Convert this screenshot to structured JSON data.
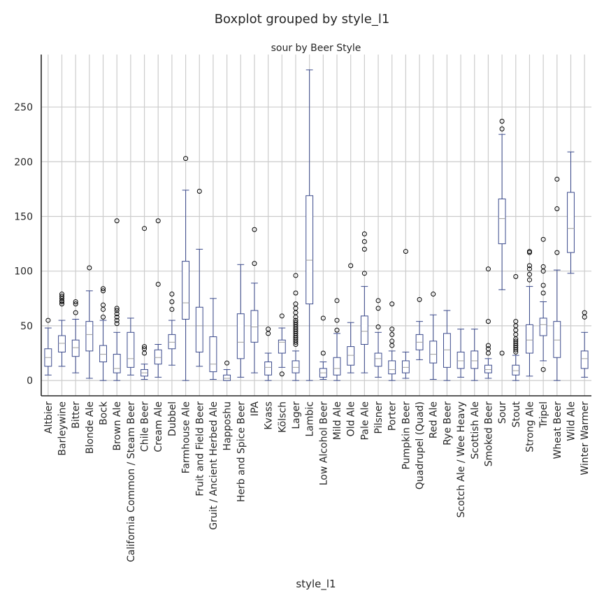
{
  "chart_data": {
    "type": "box",
    "suptitle": "Boxplot grouped by style_l1",
    "title": "sour by Beer Style",
    "xlabel": "style_l1",
    "ylabel": "",
    "ylim": [
      -14,
      298
    ],
    "yticks": [
      0,
      50,
      100,
      150,
      200,
      250
    ],
    "grid": true,
    "box_color": "#3b4a8c",
    "median_color": "#a0a0a0",
    "grid_color": "#cccccc",
    "categories": [
      "Altbier",
      "Barleywine",
      "Bitter",
      "Blonde Ale",
      "Bock",
      "Brown Ale",
      "California Common / Steam Beer",
      "Chile Beer",
      "Cream Ale",
      "Dubbel",
      "Farmhouse Ale",
      "Fruit and Field Beer",
      "Gruit / Ancient Herbed Ale",
      "Happoshu",
      "Herb and Spice Beer",
      "IPA",
      "Kvass",
      "Kölsch",
      "Lager",
      "Lambic",
      "Low Alcohol Beer",
      "Mild Ale",
      "Old Ale",
      "Pale Ale",
      "Pilsner",
      "Porter",
      "Pumpkin Beer",
      "Quadrupel (Quad)",
      "Red Ale",
      "Rye Beer",
      "Scotch Ale / Wee Heavy",
      "Scottish Ale",
      "Smoked Beer",
      "Sour",
      "Stout",
      "Strong Ale",
      "Tripel",
      "Wheat Beer",
      "Wild Ale",
      "Winter Warmer"
    ],
    "boxes": [
      {
        "whislo": 5,
        "q1": 13,
        "med": 21,
        "q3": 29,
        "whishi": 48,
        "fliers": [
          55
        ]
      },
      {
        "whislo": 13,
        "q1": 26,
        "med": 34,
        "q3": 41,
        "whishi": 55,
        "fliers": [
          70,
          72,
          73,
          75,
          77,
          79
        ]
      },
      {
        "whislo": 7,
        "q1": 22,
        "med": 30,
        "q3": 37,
        "whishi": 56,
        "fliers": [
          62,
          70,
          72
        ]
      },
      {
        "whislo": 2,
        "q1": 27,
        "med": 42,
        "q3": 54,
        "whishi": 82,
        "fliers": [
          103
        ]
      },
      {
        "whislo": 0,
        "q1": 17,
        "med": 24,
        "q3": 32,
        "whishi": 55,
        "fliers": [
          58,
          65,
          69,
          82,
          84
        ]
      },
      {
        "whislo": 0,
        "q1": 7,
        "med": 11,
        "q3": 24,
        "whishi": 44,
        "fliers": [
          52,
          55,
          58,
          61,
          64,
          66,
          146
        ]
      },
      {
        "whislo": 5,
        "q1": 12,
        "med": 20,
        "q3": 44,
        "whishi": 57,
        "fliers": []
      },
      {
        "whislo": 1,
        "q1": 4,
        "med": 7,
        "q3": 10,
        "whishi": 15,
        "fliers": [
          25,
          29,
          31,
          139
        ]
      },
      {
        "whislo": 3,
        "q1": 15,
        "med": 21,
        "q3": 28,
        "whishi": 33,
        "fliers": [
          88,
          146
        ]
      },
      {
        "whislo": 14,
        "q1": 29,
        "med": 35,
        "q3": 42,
        "whishi": 55,
        "fliers": [
          65,
          72,
          79
        ]
      },
      {
        "whislo": 0,
        "q1": 56,
        "med": 71,
        "q3": 109,
        "whishi": 174,
        "fliers": [
          203
        ]
      },
      {
        "whislo": 13,
        "q1": 26,
        "med": 50,
        "q3": 67,
        "whishi": 120,
        "fliers": [
          173
        ]
      },
      {
        "whislo": 1,
        "q1": 8,
        "med": 15,
        "q3": 40,
        "whishi": 75,
        "fliers": []
      },
      {
        "whislo": 0,
        "q1": 0,
        "med": 2,
        "q3": 5,
        "whishi": 10,
        "fliers": [
          16
        ]
      },
      {
        "whislo": 3,
        "q1": 20,
        "med": 35,
        "q3": 61,
        "whishi": 106,
        "fliers": []
      },
      {
        "whislo": 7,
        "q1": 35,
        "med": 49,
        "q3": 64,
        "whishi": 89,
        "fliers": [
          107,
          138
        ]
      },
      {
        "whislo": 0,
        "q1": 5,
        "med": 12,
        "q3": 17,
        "whishi": 25,
        "fliers": [
          43,
          47
        ]
      },
      {
        "whislo": 12,
        "q1": 25,
        "med": 35,
        "q3": 37,
        "whishi": 48,
        "fliers": [
          6,
          59
        ]
      },
      {
        "whislo": 0,
        "q1": 7,
        "med": 12,
        "q3": 18,
        "whishi": 27,
        "fliers": [
          33,
          35,
          37,
          39,
          41,
          43,
          45,
          47,
          49,
          51,
          53,
          55,
          58,
          62,
          66,
          70,
          80,
          96
        ]
      },
      {
        "whislo": 0,
        "q1": 70,
        "med": 110,
        "q3": 169,
        "whishi": 284,
        "fliers": []
      },
      {
        "whislo": 1,
        "q1": 3,
        "med": 7,
        "q3": 11,
        "whishi": 17,
        "fliers": [
          25,
          57
        ]
      },
      {
        "whislo": 0,
        "q1": 5,
        "med": 11,
        "q3": 21,
        "whishi": 43,
        "fliers": [
          46,
          55,
          73
        ]
      },
      {
        "whislo": 7,
        "q1": 14,
        "med": 23,
        "q3": 31,
        "whishi": 53,
        "fliers": [
          105
        ]
      },
      {
        "whislo": 7,
        "q1": 33,
        "med": 45,
        "q3": 59,
        "whishi": 86,
        "fliers": [
          98,
          120,
          127,
          134
        ]
      },
      {
        "whislo": 3,
        "q1": 13,
        "med": 20,
        "q3": 25,
        "whishi": 44,
        "fliers": [
          49,
          66,
          73
        ]
      },
      {
        "whislo": 0,
        "q1": 6,
        "med": 10,
        "q3": 18,
        "whishi": 27,
        "fliers": [
          32,
          36,
          42,
          47,
          70
        ]
      },
      {
        "whislo": 2,
        "q1": 7,
        "med": 12,
        "q3": 18,
        "whishi": 26,
        "fliers": [
          118
        ]
      },
      {
        "whislo": 19,
        "q1": 28,
        "med": 35,
        "q3": 42,
        "whishi": 54,
        "fliers": [
          74
        ]
      },
      {
        "whislo": 1,
        "q1": 16,
        "med": 24,
        "q3": 36,
        "whishi": 60,
        "fliers": [
          79
        ]
      },
      {
        "whislo": 0,
        "q1": 12,
        "med": 28,
        "q3": 43,
        "whishi": 64,
        "fliers": []
      },
      {
        "whislo": 3,
        "q1": 11,
        "med": 18,
        "q3": 26,
        "whishi": 47,
        "fliers": []
      },
      {
        "whislo": 0,
        "q1": 11,
        "med": 18,
        "q3": 27,
        "whishi": 47,
        "fliers": []
      },
      {
        "whislo": 2,
        "q1": 7,
        "med": 10,
        "q3": 14,
        "whishi": 20,
        "fliers": [
          25,
          29,
          32,
          54,
          102
        ]
      },
      {
        "whislo": 83,
        "q1": 125,
        "med": 148,
        "q3": 166,
        "whishi": 225,
        "fliers": [
          25,
          230,
          237
        ]
      },
      {
        "whislo": 0,
        "q1": 5,
        "med": 9,
        "q3": 14,
        "whishi": 23,
        "fliers": [
          26,
          28,
          30,
          32,
          34,
          36,
          38,
          42,
          46,
          50,
          54,
          95
        ]
      },
      {
        "whislo": 4,
        "q1": 25,
        "med": 37,
        "q3": 51,
        "whishi": 86,
        "fliers": [
          92,
          97,
          102,
          105,
          117,
          118
        ]
      },
      {
        "whislo": 18,
        "q1": 41,
        "med": 51,
        "q3": 57,
        "whishi": 72,
        "fliers": [
          10,
          80,
          87,
          100,
          104,
          129
        ]
      },
      {
        "whislo": 0,
        "q1": 21,
        "med": 37,
        "q3": 54,
        "whishi": 101,
        "fliers": [
          117,
          157,
          184
        ]
      },
      {
        "whislo": 98,
        "q1": 117,
        "med": 139,
        "q3": 172,
        "whishi": 209,
        "fliers": []
      },
      {
        "whislo": 3,
        "q1": 11,
        "med": 20,
        "q3": 27,
        "whishi": 44,
        "fliers": [
          58,
          62
        ]
      }
    ]
  }
}
